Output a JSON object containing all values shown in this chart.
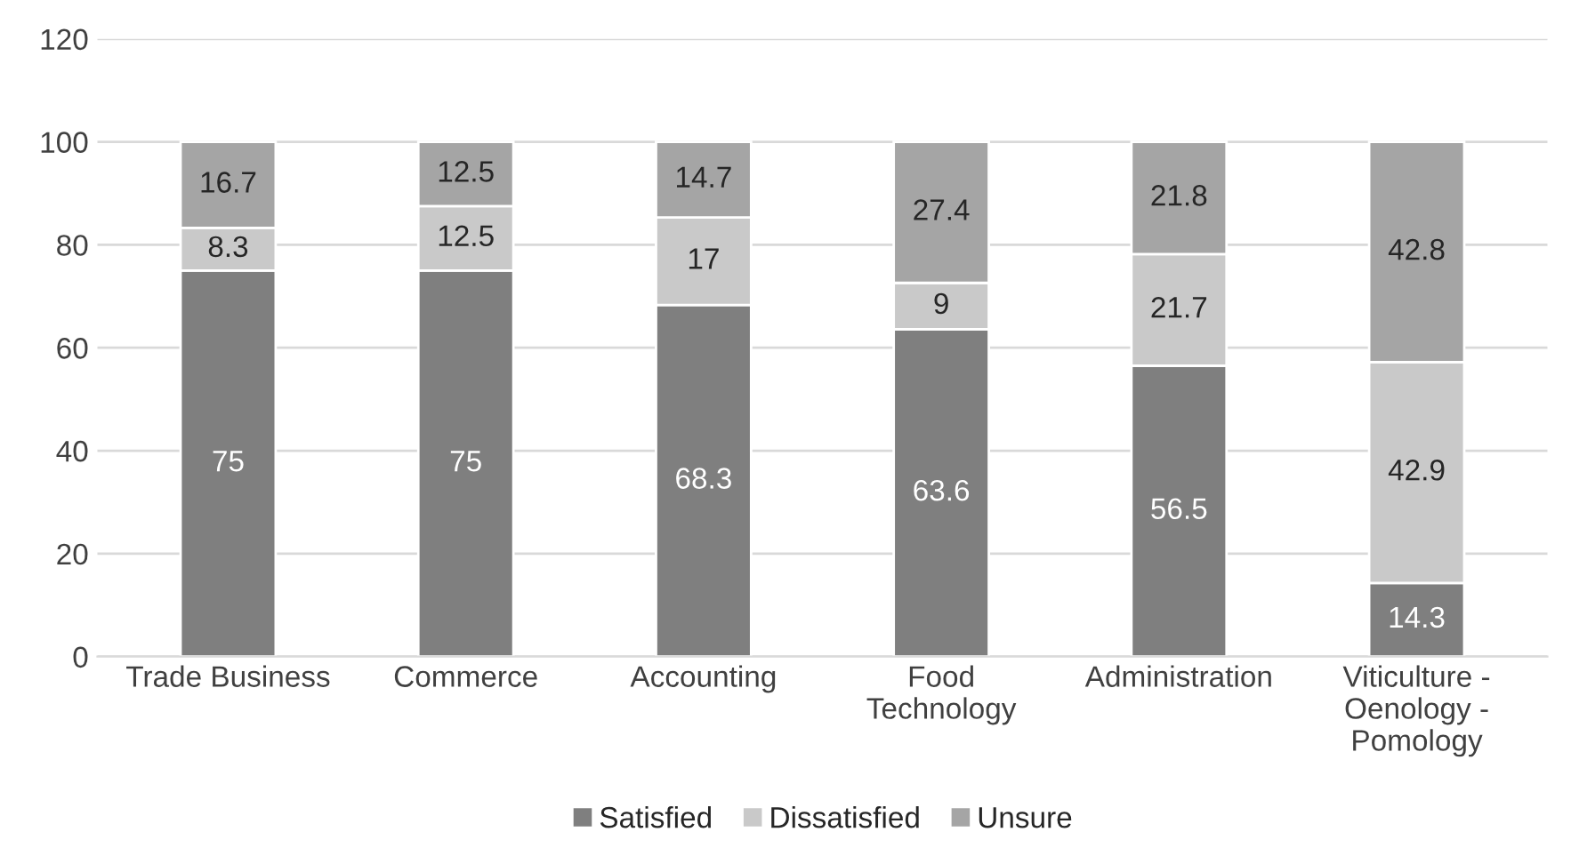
{
  "chart_data": {
    "type": "bar",
    "stacked": true,
    "categories": [
      "Trade Business",
      "Commerce",
      "Accounting",
      "Food\nTechnology",
      "Administration",
      "Viticulture -\nOenology -\nPomology"
    ],
    "series": [
      {
        "name": "Satisfied",
        "color": "#7f7f7f",
        "values": [
          75,
          75,
          68.3,
          63.6,
          56.5,
          14.3
        ]
      },
      {
        "name": "Dissatisfied",
        "color": "#c9c9c9",
        "values": [
          8.3,
          12.5,
          17,
          9,
          21.7,
          42.9
        ]
      },
      {
        "name": "Unsure",
        "color": "#a5a5a5",
        "values": [
          16.7,
          12.5,
          14.7,
          27.4,
          21.8,
          42.8
        ]
      }
    ],
    "ylim": [
      0,
      120
    ],
    "yticks": [
      0,
      20,
      40,
      60,
      80,
      100,
      120
    ],
    "grid": "y",
    "legend": "bottom",
    "data_labels": true
  }
}
